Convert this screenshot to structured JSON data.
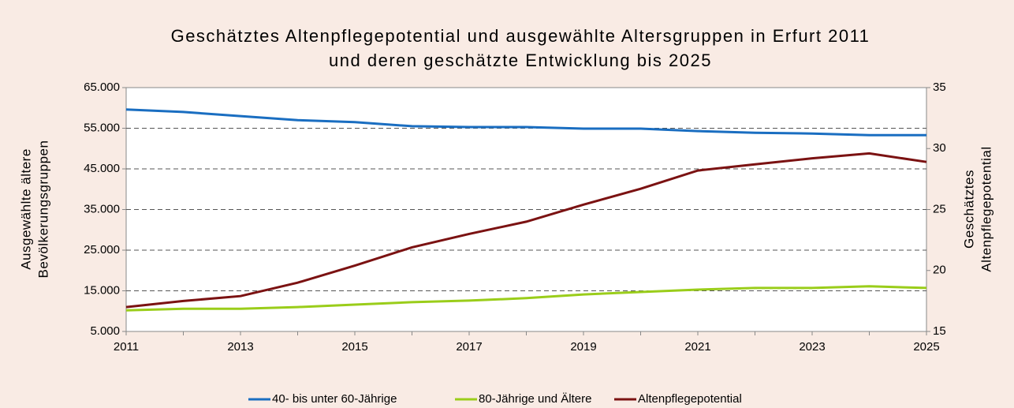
{
  "chart_data": {
    "type": "line",
    "title": [
      "Geschätztes Altenpflegepotential und ausgewählte Altersgruppen in Erfurt 2011",
      "und deren geschätzte Entwicklung bis 2025"
    ],
    "y_label": [
      "Ausgewählte ältere",
      "Bevölkerungsgruppen"
    ],
    "y2_label": [
      "Geschätztes",
      "Altenpflegepotential"
    ],
    "x": [
      2011,
      2012,
      2013,
      2014,
      2015,
      2016,
      2017,
      2018,
      2019,
      2020,
      2021,
      2022,
      2023,
      2024,
      2025
    ],
    "xlim": [
      2011,
      2025
    ],
    "xticks": [
      2011,
      2013,
      2015,
      2017,
      2019,
      2021,
      2023,
      2025
    ],
    "ylim": [
      5000,
      65000
    ],
    "yticks": [
      {
        "value": 5000,
        "label": "5.000"
      },
      {
        "value": 15000,
        "label": "15.000"
      },
      {
        "value": 25000,
        "label": "25.000"
      },
      {
        "value": 35000,
        "label": "35.000"
      },
      {
        "value": 45000,
        "label": "45.000"
      },
      {
        "value": 55000,
        "label": "55.000"
      },
      {
        "value": 65000,
        "label": "65.000"
      }
    ],
    "y2lim": [
      15,
      35
    ],
    "y2ticks": [
      15,
      20,
      25,
      30,
      35
    ],
    "grid": true,
    "legend": "bottom",
    "series": [
      {
        "name": "40- bis unter 60-Jährige",
        "color": "#1a6ec1",
        "values": [
          59600,
          59000,
          58000,
          57000,
          56500,
          55500,
          55300,
          55300,
          54900,
          54900,
          54300,
          53900,
          53700,
          53300,
          53300
        ]
      },
      {
        "name": "80-Jährige und Ältere",
        "color": "#9acd1a",
        "values": [
          10200,
          10600,
          10600,
          11000,
          11600,
          12200,
          12600,
          13200,
          14100,
          14700,
          15300,
          15700,
          15700,
          16100,
          15700
        ]
      },
      {
        "name": "Altenpflegepotential",
        "color": "#7b1212",
        "axis": "y2",
        "values": [
          17.0,
          17.5,
          17.9,
          19.0,
          20.4,
          21.9,
          23.0,
          24.0,
          25.4,
          26.7,
          28.2,
          28.7,
          29.2,
          29.6,
          28.9
        ]
      }
    ]
  }
}
